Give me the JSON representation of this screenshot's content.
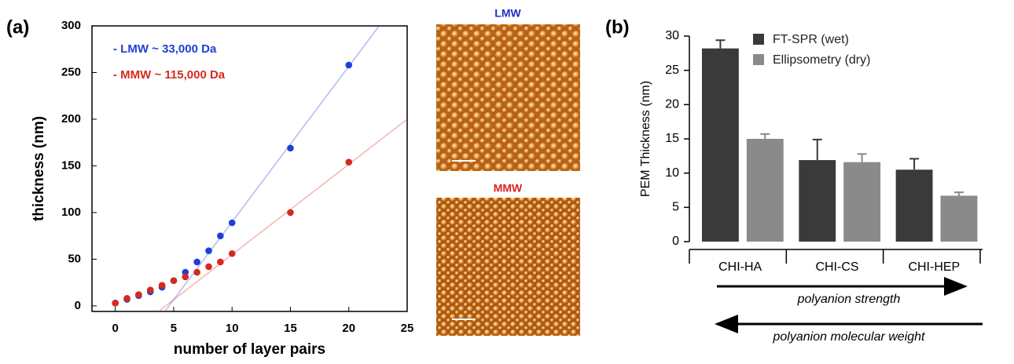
{
  "chart_data": [
    {
      "type": "scatter",
      "label": "(a)",
      "x_label": "number of layer pairs",
      "y_label": "thickness (nm)",
      "xlim": [
        -2,
        25
      ],
      "ylim": [
        -6,
        300
      ],
      "xticks": [
        0,
        5,
        10,
        15,
        20,
        25
      ],
      "yticks": [
        0,
        50,
        100,
        150,
        200,
        250,
        300
      ],
      "series": [
        {
          "name": "- LMW ~ 33,000 Da",
          "color": "#1f3fd6",
          "x": [
            0,
            1,
            2,
            3,
            4,
            5,
            6,
            7,
            8,
            9,
            10,
            15,
            20
          ],
          "values": [
            3,
            7,
            11,
            15,
            20,
            27,
            36,
            47,
            59,
            75,
            89,
            169,
            258
          ],
          "fit_x": [
            4.3,
            22.6
          ],
          "fit_values": [
            -5,
            300
          ]
        },
        {
          "name": "- MMW ~ 115,000 Da",
          "color": "#d62a1f",
          "x": [
            0,
            1,
            2,
            3,
            4,
            5,
            6,
            7,
            8,
            9,
            10,
            15,
            20
          ],
          "values": [
            3,
            8,
            12,
            17,
            22,
            27,
            31,
            36,
            42,
            47,
            56,
            100,
            154
          ],
          "fit_x": [
            3.8,
            25
          ],
          "fit_values": [
            -5,
            200
          ]
        }
      ],
      "image_titles": [
        {
          "text": "LMW",
          "color": "#2030c0"
        },
        {
          "text": "MMW",
          "color": "#e02020"
        }
      ]
    },
    {
      "type": "bar",
      "label": "(b)",
      "y_label": "PEM Thickness (nm)",
      "categories": [
        "CHI-HA",
        "CHI-CS",
        "CHI-HEP"
      ],
      "ylim": [
        0,
        30
      ],
      "yticks": [
        0,
        5,
        10,
        15,
        20,
        25,
        30
      ],
      "series": [
        {
          "name": "FT-SPR (wet)",
          "color": "#3a3a3a",
          "values": [
            28.2,
            11.9,
            10.5
          ],
          "errors": [
            1.2,
            3.0,
            1.6
          ]
        },
        {
          "name": "Ellipsometry (dry)",
          "color": "#8a8a8a",
          "values": [
            15.0,
            11.6,
            6.7
          ],
          "errors": [
            0.7,
            1.2,
            0.5
          ]
        }
      ],
      "annotations": [
        {
          "text": "polyanion strength",
          "direction": "right"
        },
        {
          "text": "polyanion molecular weight",
          "direction": "left"
        }
      ]
    }
  ]
}
